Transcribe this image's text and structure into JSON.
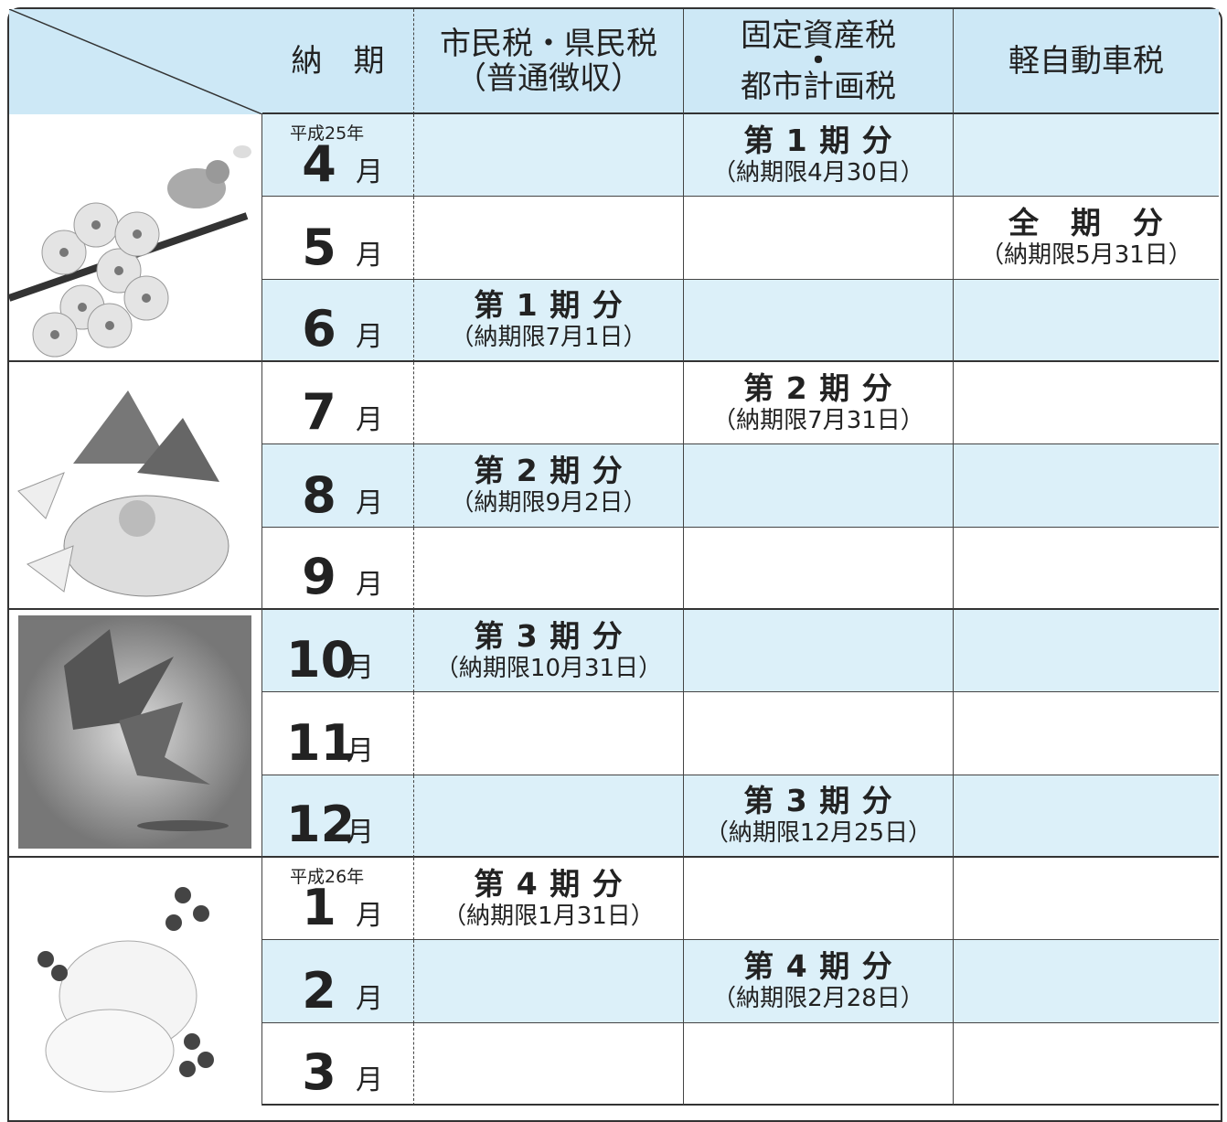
{
  "header": {
    "term": "納　期",
    "city_tax": [
      "市民税・県民税",
      "（普通徴収）"
    ],
    "property_tax": [
      "固定資産税",
      "・",
      "都市計画税"
    ],
    "kei_tax": "軽自動車税"
  },
  "rows": [
    {
      "era": "平成25年",
      "month": "4",
      "unit": "月",
      "property": {
        "period": "第 1 期 分",
        "deadline": "（納期限4月30日）"
      }
    },
    {
      "month": "5",
      "unit": "月",
      "kei": {
        "period": "全　期　分",
        "deadline": "（納期限5月31日）"
      }
    },
    {
      "month": "6",
      "unit": "月",
      "city": {
        "period": "第 1 期 分",
        "deadline": "（納期限7月1日）"
      }
    },
    {
      "month": "7",
      "unit": "月",
      "property": {
        "period": "第 2 期 分",
        "deadline": "（納期限7月31日）"
      }
    },
    {
      "month": "8",
      "unit": "月",
      "city": {
        "period": "第 2 期 分",
        "deadline": "（納期限9月2日）"
      }
    },
    {
      "month": "9",
      "unit": "月"
    },
    {
      "month": "10",
      "unit": "月",
      "city": {
        "period": "第 3 期 分",
        "deadline": "（納期限10月31日）"
      }
    },
    {
      "month": "11",
      "unit": "月"
    },
    {
      "month": "12",
      "unit": "月",
      "property": {
        "period": "第 3 期 分",
        "deadline": "（納期限12月25日）"
      }
    },
    {
      "era": "平成26年",
      "month": "1",
      "unit": "月",
      "city": {
        "period": "第 4 期 分",
        "deadline": "（納期限1月31日）"
      }
    },
    {
      "month": "2",
      "unit": "月",
      "property": {
        "period": "第 4 期 分",
        "deadline": "（納期限2月28日）"
      }
    },
    {
      "month": "3",
      "unit": "月"
    }
  ]
}
